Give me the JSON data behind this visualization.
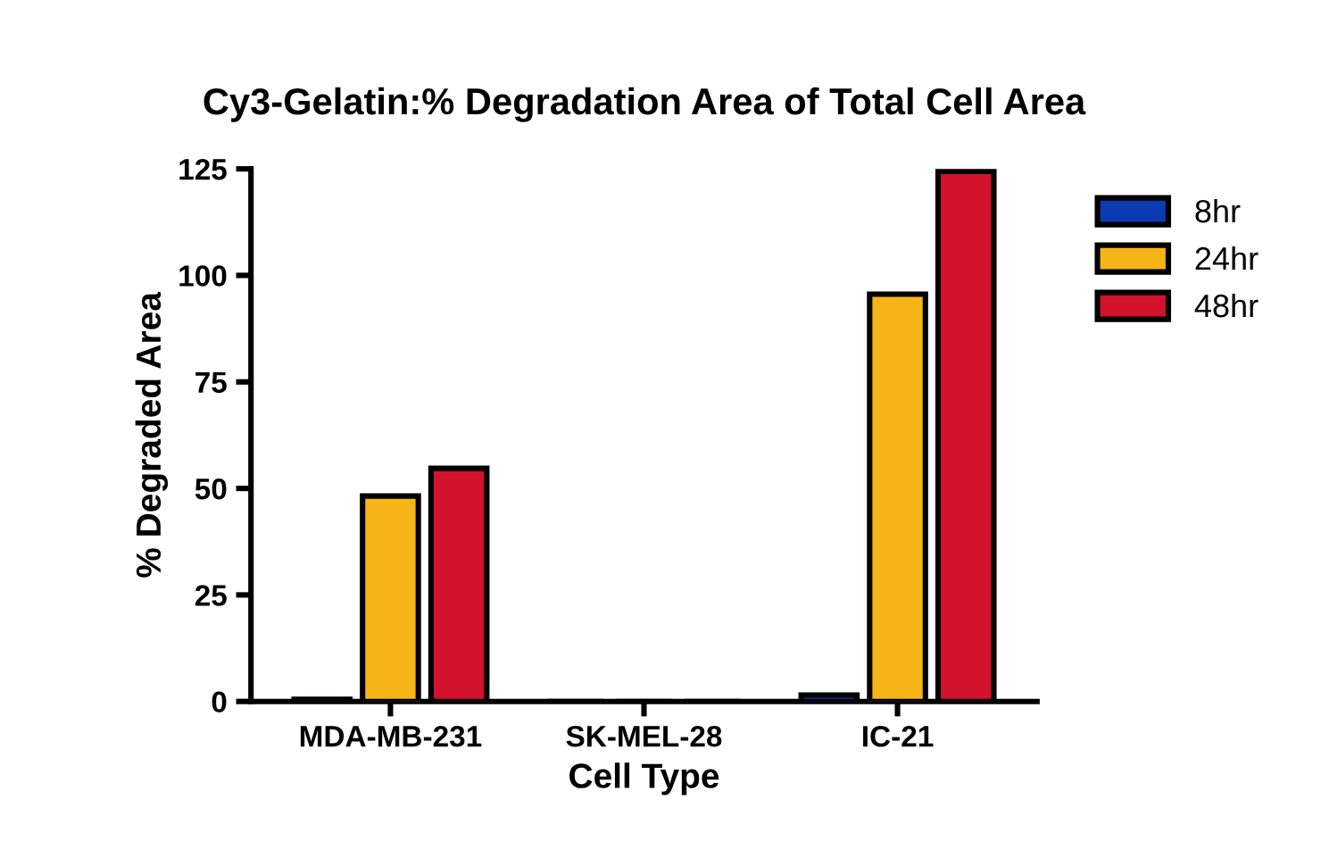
{
  "chart_data": {
    "type": "bar",
    "title": "Cy3-Gelatin:% Degradation Area of Total Cell Area",
    "xlabel": "Cell Type",
    "ylabel": "% Degraded Area",
    "categories": [
      "MDA-MB-231",
      "SK-MEL-28",
      "IC-21"
    ],
    "series": [
      {
        "name": "8hr",
        "color": "#0a3bb0",
        "values": [
          0.5,
          0,
          1.5
        ]
      },
      {
        "name": "24hr",
        "color": "#f5b516",
        "values": [
          48.2,
          0,
          95.6
        ]
      },
      {
        "name": "48hr",
        "color": "#d2132b",
        "values": [
          54.7,
          0,
          124.4
        ]
      }
    ],
    "ylim": [
      0,
      125
    ],
    "yticks": [
      0,
      25,
      50,
      75,
      100,
      125
    ],
    "grid": false,
    "legend": "top right"
  }
}
